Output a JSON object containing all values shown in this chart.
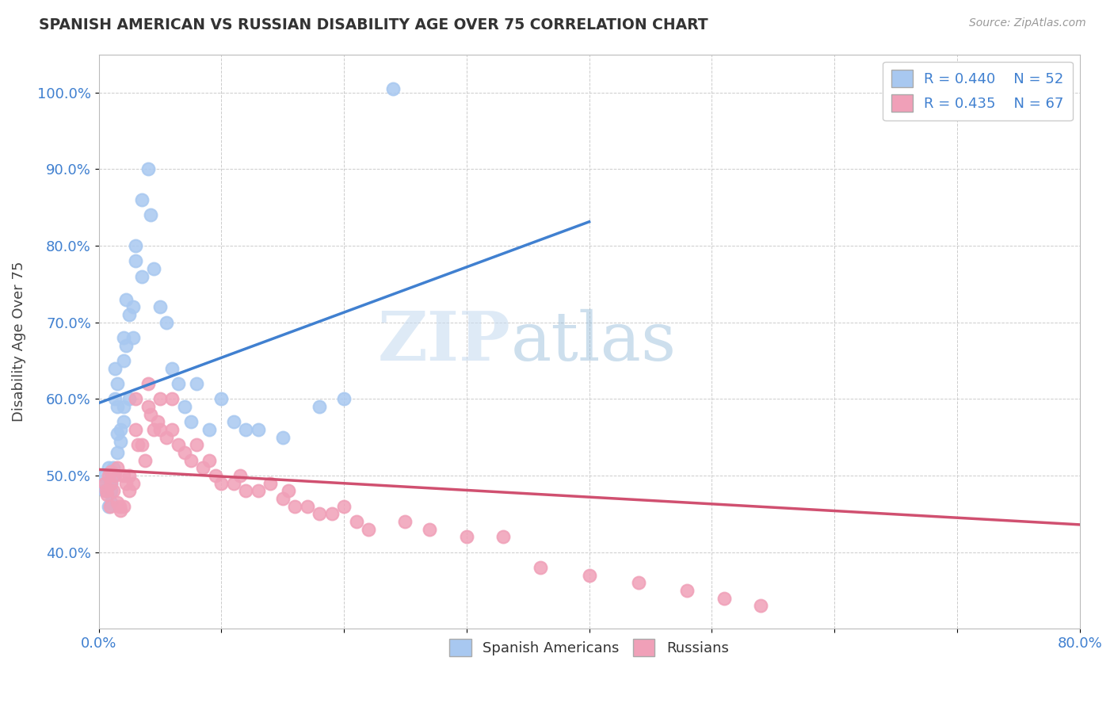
{
  "title": "SPANISH AMERICAN VS RUSSIAN DISABILITY AGE OVER 75 CORRELATION CHART",
  "source": "Source: ZipAtlas.com",
  "ylabel": "Disability Age Over 75",
  "xlim": [
    0.0,
    0.8
  ],
  "ylim": [
    0.3,
    1.05
  ],
  "xticks": [
    0.0,
    0.1,
    0.2,
    0.3,
    0.4,
    0.5,
    0.6,
    0.7,
    0.8
  ],
  "xticklabels": [
    "0.0%",
    "",
    "",
    "",
    "",
    "",
    "",
    "",
    "80.0%"
  ],
  "yticks": [
    0.4,
    0.5,
    0.6,
    0.7,
    0.8,
    0.9,
    1.0
  ],
  "yticklabels": [
    "40.0%",
    "50.0%",
    "60.0%",
    "70.0%",
    "80.0%",
    "90.0%",
    "100.0%"
  ],
  "blue_R": 0.44,
  "blue_N": 52,
  "pink_R": 0.435,
  "pink_N": 67,
  "blue_color": "#A8C8F0",
  "pink_color": "#F0A0B8",
  "blue_line_color": "#4080D0",
  "pink_line_color": "#D05070",
  "legend_label_blue": "Spanish Americans",
  "legend_label_pink": "Russians",
  "watermark_zip": "ZIP",
  "watermark_atlas": "atlas",
  "background_color": "#ffffff",
  "blue_scatter_x": [
    0.005,
    0.005,
    0.005,
    0.008,
    0.008,
    0.01,
    0.01,
    0.01,
    0.01,
    0.012,
    0.012,
    0.013,
    0.013,
    0.015,
    0.015,
    0.015,
    0.015,
    0.018,
    0.018,
    0.02,
    0.02,
    0.02,
    0.02,
    0.022,
    0.022,
    0.025,
    0.025,
    0.028,
    0.028,
    0.03,
    0.03,
    0.035,
    0.035,
    0.04,
    0.042,
    0.045,
    0.05,
    0.055,
    0.06,
    0.065,
    0.07,
    0.075,
    0.08,
    0.09,
    0.1,
    0.11,
    0.12,
    0.13,
    0.15,
    0.18,
    0.2,
    0.24
  ],
  "blue_scatter_y": [
    0.5,
    0.49,
    0.48,
    0.51,
    0.46,
    0.505,
    0.49,
    0.48,
    0.465,
    0.51,
    0.5,
    0.6,
    0.64,
    0.62,
    0.59,
    0.555,
    0.53,
    0.56,
    0.545,
    0.68,
    0.65,
    0.59,
    0.57,
    0.67,
    0.73,
    0.71,
    0.6,
    0.72,
    0.68,
    0.8,
    0.78,
    0.86,
    0.76,
    0.9,
    0.84,
    0.77,
    0.72,
    0.7,
    0.64,
    0.62,
    0.59,
    0.57,
    0.62,
    0.56,
    0.6,
    0.57,
    0.56,
    0.56,
    0.55,
    0.59,
    0.6,
    1.005
  ],
  "pink_scatter_x": [
    0.005,
    0.006,
    0.007,
    0.008,
    0.009,
    0.01,
    0.01,
    0.012,
    0.013,
    0.015,
    0.015,
    0.017,
    0.018,
    0.02,
    0.02,
    0.022,
    0.025,
    0.025,
    0.028,
    0.03,
    0.03,
    0.032,
    0.035,
    0.038,
    0.04,
    0.04,
    0.042,
    0.045,
    0.048,
    0.05,
    0.05,
    0.055,
    0.06,
    0.06,
    0.065,
    0.07,
    0.075,
    0.08,
    0.085,
    0.09,
    0.095,
    0.1,
    0.11,
    0.115,
    0.12,
    0.13,
    0.14,
    0.15,
    0.155,
    0.16,
    0.17,
    0.18,
    0.19,
    0.2,
    0.21,
    0.22,
    0.25,
    0.27,
    0.3,
    0.33,
    0.36,
    0.4,
    0.44,
    0.48,
    0.51,
    0.54,
    0.7
  ],
  "pink_scatter_y": [
    0.49,
    0.48,
    0.475,
    0.5,
    0.46,
    0.505,
    0.49,
    0.48,
    0.5,
    0.51,
    0.465,
    0.46,
    0.455,
    0.5,
    0.46,
    0.49,
    0.5,
    0.48,
    0.49,
    0.6,
    0.56,
    0.54,
    0.54,
    0.52,
    0.62,
    0.59,
    0.58,
    0.56,
    0.57,
    0.6,
    0.56,
    0.55,
    0.6,
    0.56,
    0.54,
    0.53,
    0.52,
    0.54,
    0.51,
    0.52,
    0.5,
    0.49,
    0.49,
    0.5,
    0.48,
    0.48,
    0.49,
    0.47,
    0.48,
    0.46,
    0.46,
    0.45,
    0.45,
    0.46,
    0.44,
    0.43,
    0.44,
    0.43,
    0.42,
    0.42,
    0.38,
    0.37,
    0.36,
    0.35,
    0.34,
    0.33,
    1.005
  ]
}
